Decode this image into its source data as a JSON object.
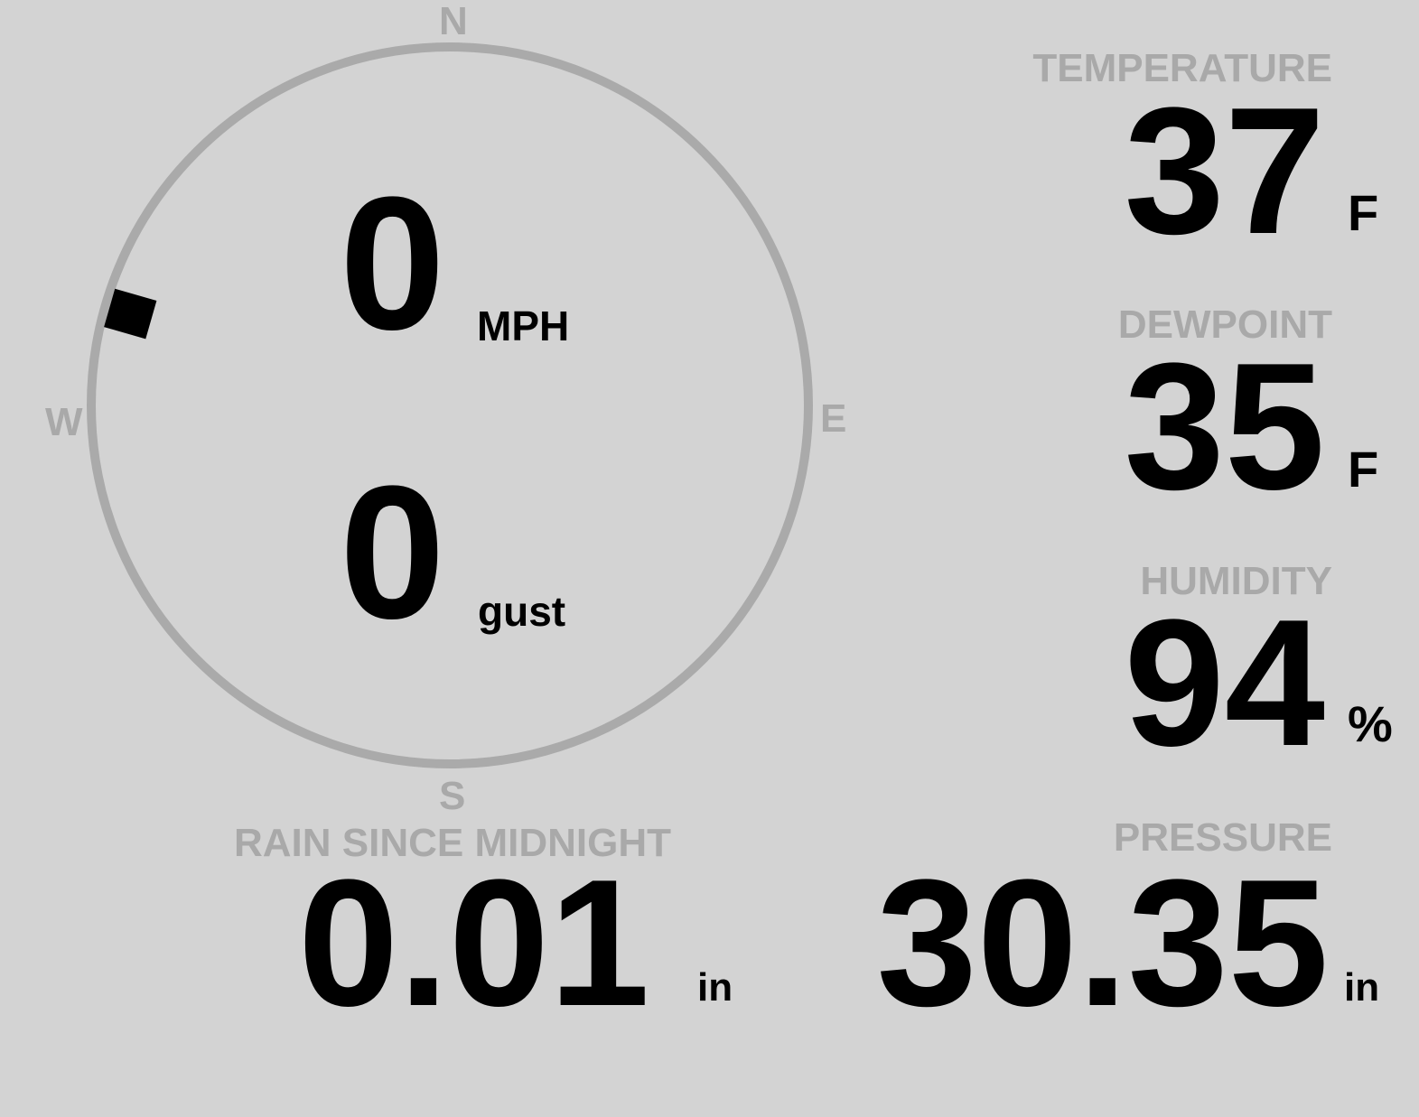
{
  "compass": {
    "north": "N",
    "south": "S",
    "east": "E",
    "west": "W",
    "wind_direction_deg": 286,
    "ring_color": "#aaaaaa",
    "marker_color": "#000000"
  },
  "wind": {
    "speed": "0",
    "speed_unit": "MPH",
    "gust": "0",
    "gust_unit": "gust"
  },
  "temperature": {
    "label": "TEMPERATURE",
    "value": "37",
    "unit": "F"
  },
  "dewpoint": {
    "label": "DEWPOINT",
    "value": "35",
    "unit": "F"
  },
  "humidity": {
    "label": "HUMIDITY",
    "value": "94",
    "unit": "%"
  },
  "rain": {
    "label": "RAIN SINCE MIDNIGHT",
    "value": "0.01",
    "unit": "in"
  },
  "pressure": {
    "label": "PRESSURE",
    "value": "30.35",
    "unit": "in"
  },
  "colors": {
    "background": "#d3d3d3",
    "label": "#a9a9a9",
    "value": "#000000"
  }
}
